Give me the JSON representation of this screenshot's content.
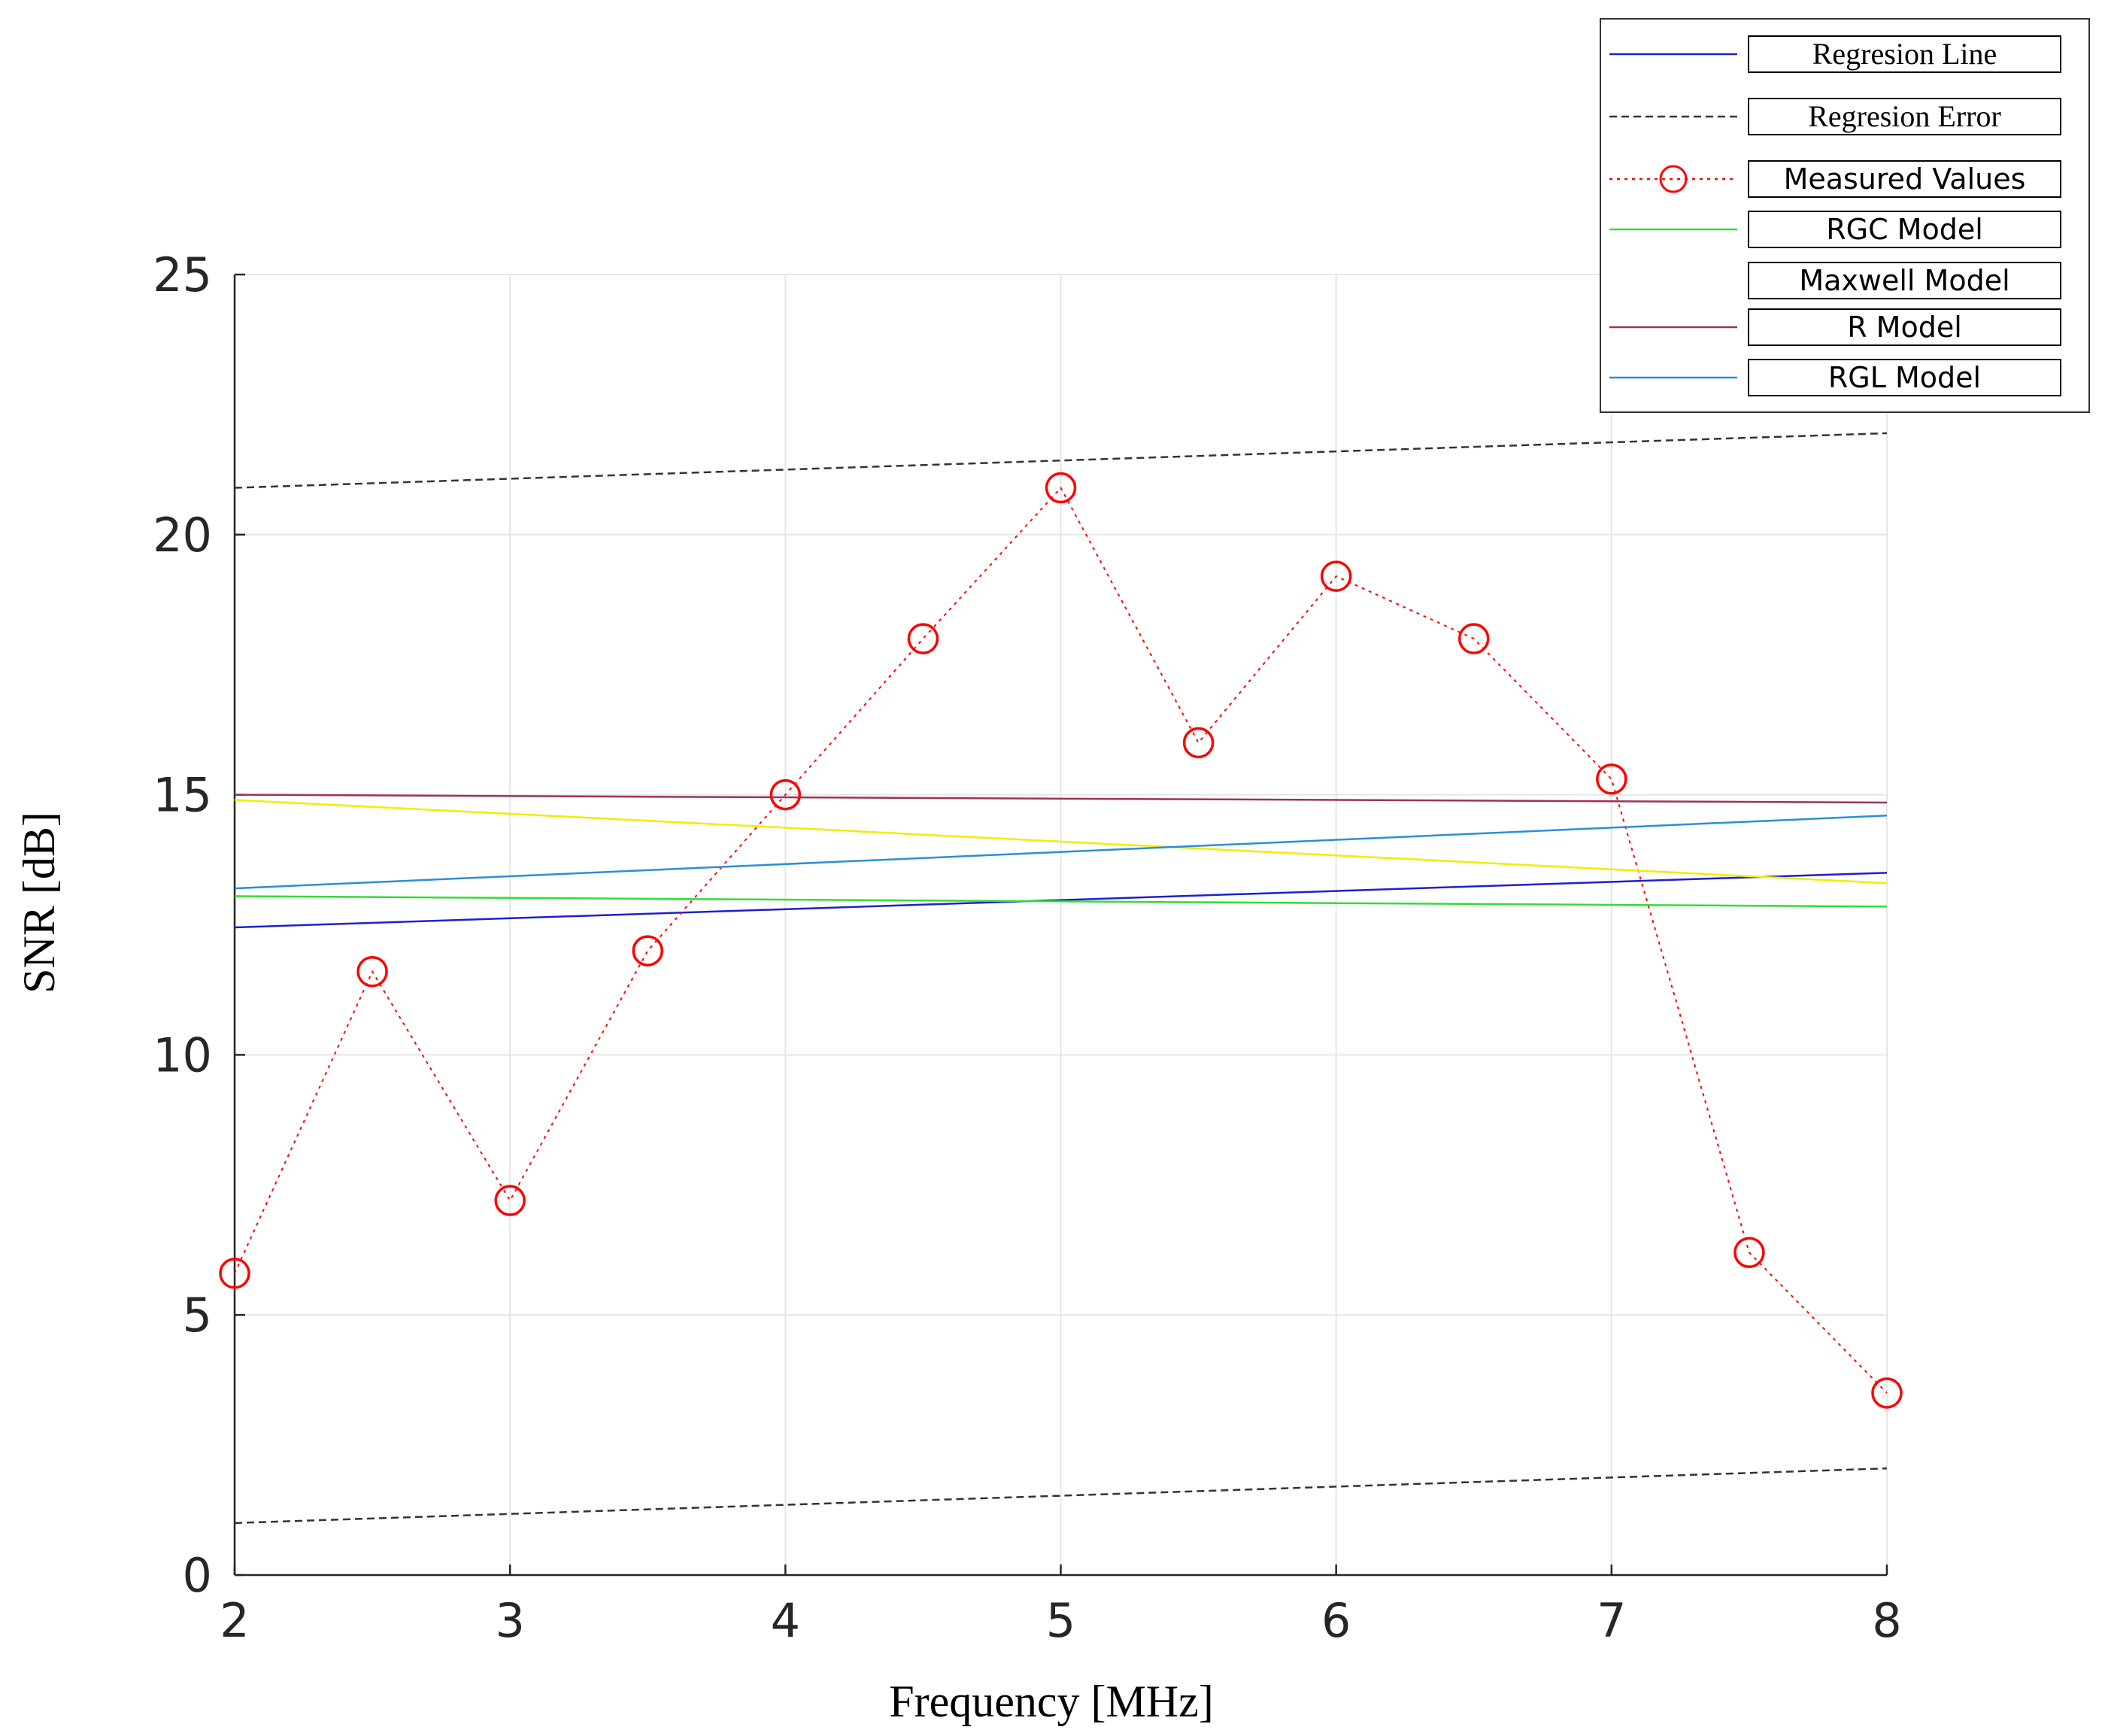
{
  "chart_data": {
    "type": "line",
    "xlabel": "Frequency [MHz]",
    "ylabel": "SNR [dB]",
    "xlim": [
      2,
      8
    ],
    "ylim": [
      0,
      25
    ],
    "xticks": [
      2,
      3,
      4,
      5,
      6,
      7,
      8
    ],
    "yticks": [
      0,
      5,
      10,
      15,
      20,
      25
    ],
    "grid": true,
    "legend_position": "top-right",
    "series": [
      {
        "name": "Regresion Line",
        "color": "#1f1fd0",
        "style": "solid",
        "x": [
          2,
          8
        ],
        "y": [
          12.45,
          13.5
        ]
      },
      {
        "name": "Regresion Error",
        "color": "#333333",
        "style": "dashed",
        "x": [
          2,
          8
        ],
        "y": [
          20.9,
          21.95
        ]
      },
      {
        "name": "Regresion Error (lower)",
        "legend": false,
        "color": "#333333",
        "style": "dashed",
        "x": [
          2,
          8
        ],
        "y": [
          1.0,
          2.05
        ]
      },
      {
        "name": "Measured Values",
        "color": "#ff0000",
        "style": "dotted",
        "marker": "circle",
        "x": [
          2,
          2.5,
          3,
          3.5,
          4,
          4.5,
          5,
          5.5,
          6,
          6.5,
          7,
          7.5,
          8
        ],
        "y": [
          5.8,
          11.6,
          7.2,
          12.0,
          15.0,
          18.0,
          20.9,
          16.0,
          19.2,
          18.0,
          15.3,
          6.2,
          3.5
        ]
      },
      {
        "name": "RGC Model",
        "color": "#33dd33",
        "style": "solid",
        "x": [
          2,
          8
        ],
        "y": [
          13.05,
          12.85
        ]
      },
      {
        "name": "Maxwell Model",
        "color": "#eeee00",
        "style": "solid",
        "x": [
          2,
          8
        ],
        "y": [
          14.9,
          13.3
        ]
      },
      {
        "name": "R Model",
        "color": "#a0305a",
        "style": "solid",
        "x": [
          2,
          8
        ],
        "y": [
          15.0,
          14.85
        ]
      },
      {
        "name": "RGL Model",
        "color": "#2a8fd8",
        "style": "solid",
        "x": [
          2,
          8
        ],
        "y": [
          13.2,
          14.6
        ]
      }
    ],
    "legend_entries": [
      {
        "label": "Regresion Line",
        "series": 0,
        "font": "serif"
      },
      {
        "label": "Regresion Error",
        "series": 1,
        "font": "serif"
      },
      {
        "label": "Measured Values",
        "series": 3,
        "font": "sans"
      },
      {
        "label": "RGC Model",
        "series": 4,
        "font": "sans"
      },
      {
        "label": "Maxwell Model",
        "series": 5,
        "font": "sans",
        "hideSample": true
      },
      {
        "label": "R Model",
        "series": 6,
        "font": "sans"
      },
      {
        "label": "RGL Model",
        "series": 7,
        "font": "sans"
      }
    ]
  }
}
